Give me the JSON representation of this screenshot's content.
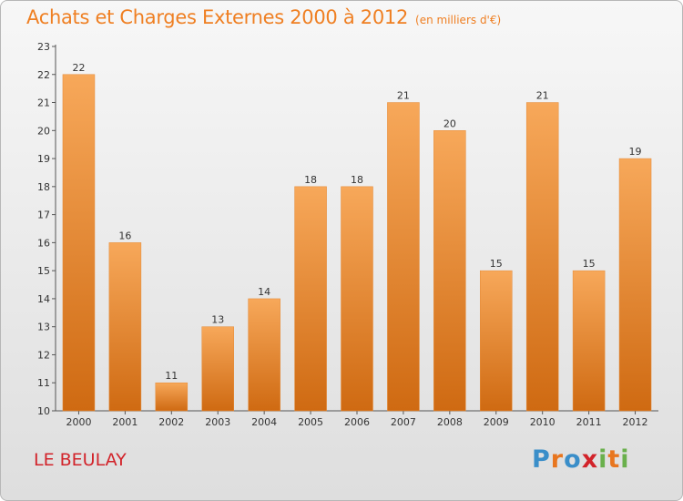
{
  "title": "Achats et Charges Externes 2000 à 2012",
  "subtitle": "(en milliers d'€)",
  "commune": "LE BEULAY",
  "logo": {
    "text": "Proxiti",
    "letters": [
      {
        "ch": "P",
        "color": "#3a8ec9"
      },
      {
        "ch": "r",
        "color": "#e8761f"
      },
      {
        "ch": "o",
        "color": "#3a8ec9"
      },
      {
        "ch": "x",
        "color": "#d2232a"
      },
      {
        "ch": "i",
        "color": "#6ab04c"
      },
      {
        "ch": "t",
        "color": "#e8761f"
      },
      {
        "ch": "i",
        "color": "#6ab04c"
      }
    ]
  },
  "colors": {
    "title": "#ef7f22",
    "commune": "#d2232a",
    "bar_top": "#f7a85a",
    "bar_bottom": "#cf6a12"
  },
  "chart_data": {
    "type": "bar",
    "title": "Achats et Charges Externes 2000 à 2012",
    "subtitle": "(en milliers d'€)",
    "xlabel": "",
    "ylabel": "",
    "categories": [
      "2000",
      "2001",
      "2002",
      "2003",
      "2004",
      "2005",
      "2006",
      "2007",
      "2008",
      "2009",
      "2010",
      "2011",
      "2012"
    ],
    "values": [
      22,
      16,
      11,
      13,
      14,
      18,
      18,
      21,
      20,
      15,
      21,
      15,
      19
    ],
    "ylim": [
      10,
      23
    ],
    "yticks": [
      10,
      11,
      12,
      13,
      14,
      15,
      16,
      17,
      18,
      19,
      20,
      21,
      22,
      23
    ],
    "grid": false,
    "data_labels": true
  }
}
